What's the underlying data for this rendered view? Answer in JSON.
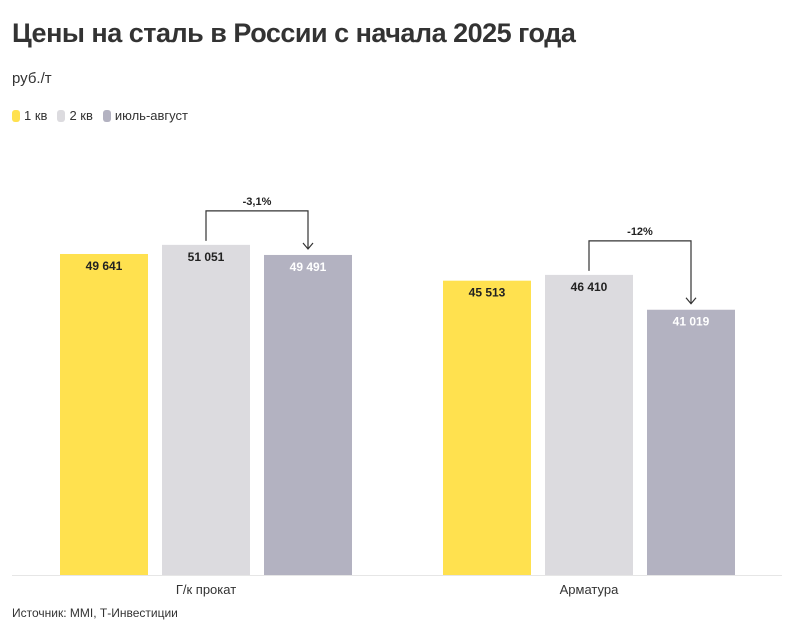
{
  "title": "Цены на сталь в России с начала 2025 года",
  "unit": "руб./т",
  "source": "Источник: MMI, Т-Инвестиции",
  "chart_data": {
    "type": "bar",
    "title": "Цены на сталь в России с начала 2025 года",
    "ylabel": "руб./т",
    "categories": [
      "Г/к прокат",
      "Арматура"
    ],
    "series": [
      {
        "name": "1 кв",
        "color": "#FFE14F",
        "label_color": "#222222",
        "values": [
          49641,
          45513
        ],
        "labels": [
          "49 641",
          "45 513"
        ]
      },
      {
        "name": "2 кв",
        "color": "#DCDBDF",
        "label_color": "#222222",
        "values": [
          51051,
          46410
        ],
        "labels": [
          "51 051",
          "46 410"
        ]
      },
      {
        "name": "июль-август",
        "color": "#B3B2C1",
        "label_color": "#FFFFFF",
        "values": [
          49491,
          41019
        ],
        "labels": [
          "49 491",
          "41 019"
        ]
      }
    ],
    "annotations": [
      {
        "category": "Г/к прокат",
        "from": "2 кв",
        "to": "июль-август",
        "text": "-3,1%"
      },
      {
        "category": "Арматура",
        "from": "2 кв",
        "to": "июль-август",
        "text": "-12%"
      }
    ],
    "ylim": [
      0,
      60000
    ],
    "grid": false,
    "legend": "top-left"
  }
}
